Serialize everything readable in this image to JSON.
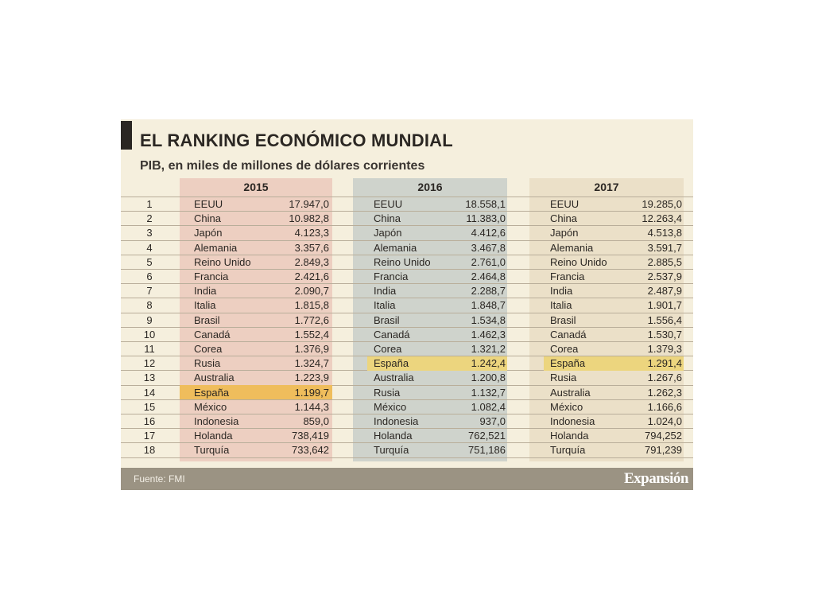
{
  "title": "EL RANKING ECONÓMICO MUNDIAL",
  "subtitle": "PIB, en miles de millones de dólares corrientes",
  "source": "Fuente: FMI",
  "brand": "Expansión",
  "colors": {
    "background": "#f5efdd",
    "col_2015": "#edcfc1",
    "col_2016": "#cfd3cc",
    "col_2017": "#ebe0c8",
    "highlight_2015": "#efbd5c",
    "highlight_other": "#ecd57e",
    "footer": "#9b9383"
  },
  "chart_data": {
    "type": "table",
    "title": "EL RANKING ECONÓMICO MUNDIAL",
    "subtitle": "PIB, en miles de millones de dólares corrientes",
    "highlight_country": "España",
    "ranks": [
      "1",
      "2",
      "3",
      "4",
      "5",
      "6",
      "7",
      "8",
      "9",
      "10",
      "11",
      "12",
      "13",
      "14",
      "15",
      "16",
      "17",
      "18"
    ],
    "years": [
      {
        "year": "2015",
        "rows": [
          {
            "country": "EEUU",
            "value": "17.947,0"
          },
          {
            "country": "China",
            "value": "10.982,8"
          },
          {
            "country": "Japón",
            "value": "4.123,3"
          },
          {
            "country": "Alemania",
            "value": "3.357,6"
          },
          {
            "country": "Reino Unido",
            "value": "2.849,3"
          },
          {
            "country": "Francia",
            "value": "2.421,6"
          },
          {
            "country": "India",
            "value": "2.090,7"
          },
          {
            "country": "Italia",
            "value": "1.815,8"
          },
          {
            "country": "Brasil",
            "value": "1.772,6"
          },
          {
            "country": "Canadá",
            "value": "1.552,4"
          },
          {
            "country": "Corea",
            "value": "1.376,9"
          },
          {
            "country": "Rusia",
            "value": "1.324,7"
          },
          {
            "country": "Australia",
            "value": "1.223,9"
          },
          {
            "country": "España",
            "value": "1.199,7"
          },
          {
            "country": "México",
            "value": "1.144,3"
          },
          {
            "country": "Indonesia",
            "value": "859,0"
          },
          {
            "country": "Holanda",
            "value": "738,419"
          },
          {
            "country": "Turquía",
            "value": "733,642"
          }
        ]
      },
      {
        "year": "2016",
        "rows": [
          {
            "country": "EEUU",
            "value": "18.558,1"
          },
          {
            "country": "China",
            "value": "11.383,0"
          },
          {
            "country": "Japón",
            "value": "4.412,6"
          },
          {
            "country": "Alemania",
            "value": "3.467,8"
          },
          {
            "country": "Reino Unido",
            "value": "2.761,0"
          },
          {
            "country": "Francia",
            "value": "2.464,8"
          },
          {
            "country": "India",
            "value": "2.288,7"
          },
          {
            "country": "Italia",
            "value": "1.848,7"
          },
          {
            "country": "Brasil",
            "value": "1.534,8"
          },
          {
            "country": "Canadá",
            "value": "1.462,3"
          },
          {
            "country": "Corea",
            "value": "1.321,2"
          },
          {
            "country": "España",
            "value": "1.242,4"
          },
          {
            "country": "Australia",
            "value": "1.200,8"
          },
          {
            "country": "Rusia",
            "value": "1.132,7"
          },
          {
            "country": "México",
            "value": "1.082,4"
          },
          {
            "country": "Indonesia",
            "value": "937,0"
          },
          {
            "country": "Holanda",
            "value": "762,521"
          },
          {
            "country": "Turquía",
            "value": "751,186"
          }
        ]
      },
      {
        "year": "2017",
        "rows": [
          {
            "country": "EEUU",
            "value": "19.285,0"
          },
          {
            "country": "China",
            "value": "12.263,4"
          },
          {
            "country": "Japón",
            "value": "4.513,8"
          },
          {
            "country": "Alemania",
            "value": "3.591,7"
          },
          {
            "country": "Reino Unido",
            "value": "2.885,5"
          },
          {
            "country": "Francia",
            "value": "2.537,9"
          },
          {
            "country": "India",
            "value": "2.487,9"
          },
          {
            "country": "Italia",
            "value": "1.901,7"
          },
          {
            "country": "Brasil",
            "value": "1.556,4"
          },
          {
            "country": "Canadá",
            "value": "1.530,7"
          },
          {
            "country": "Corea",
            "value": "1.379,3"
          },
          {
            "country": "España",
            "value": "1.291,4"
          },
          {
            "country": "Rusia",
            "value": "1.267,6"
          },
          {
            "country": "Australia",
            "value": "1.262,3"
          },
          {
            "country": "México",
            "value": "1.166,6"
          },
          {
            "country": "Indonesia",
            "value": "1.024,0"
          },
          {
            "country": "Holanda",
            "value": "794,252"
          },
          {
            "country": "Turquía",
            "value": "791,239"
          }
        ]
      }
    ]
  }
}
